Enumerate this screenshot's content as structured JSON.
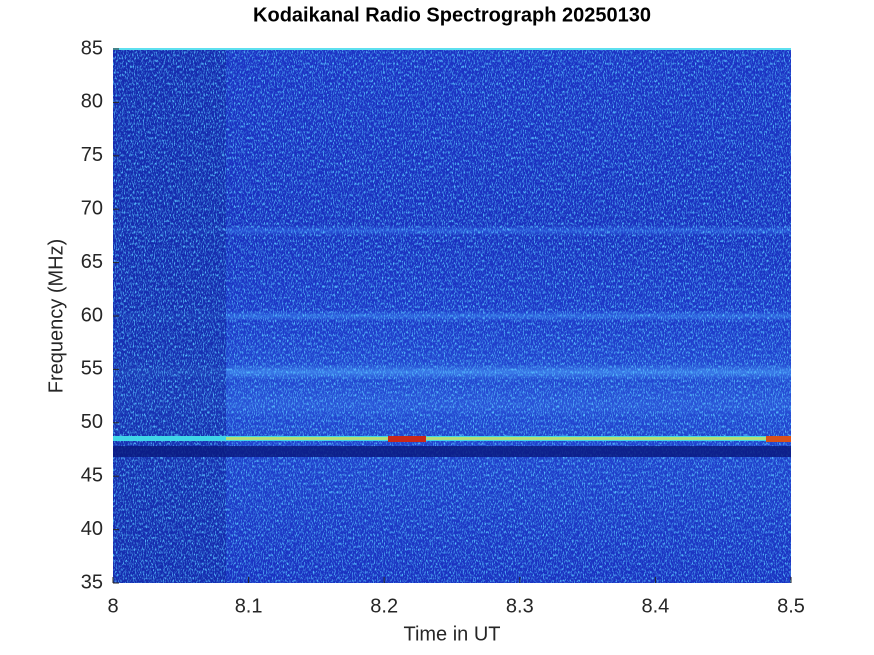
{
  "chart_data": {
    "type": "heatmap",
    "title": "Kodaikanal Radio Spectrograph  20250130",
    "x_label": "Time in UT",
    "y_label": "Frequency (MHz)",
    "xlim": [
      8,
      8.5
    ],
    "xticks": [
      8,
      8.1,
      8.2,
      8.3,
      8.4,
      8.5
    ],
    "ylim": [
      35,
      85
    ],
    "yticks": [
      35,
      40,
      45,
      50,
      55,
      60,
      65,
      70,
      75,
      80,
      85
    ]
  }
}
